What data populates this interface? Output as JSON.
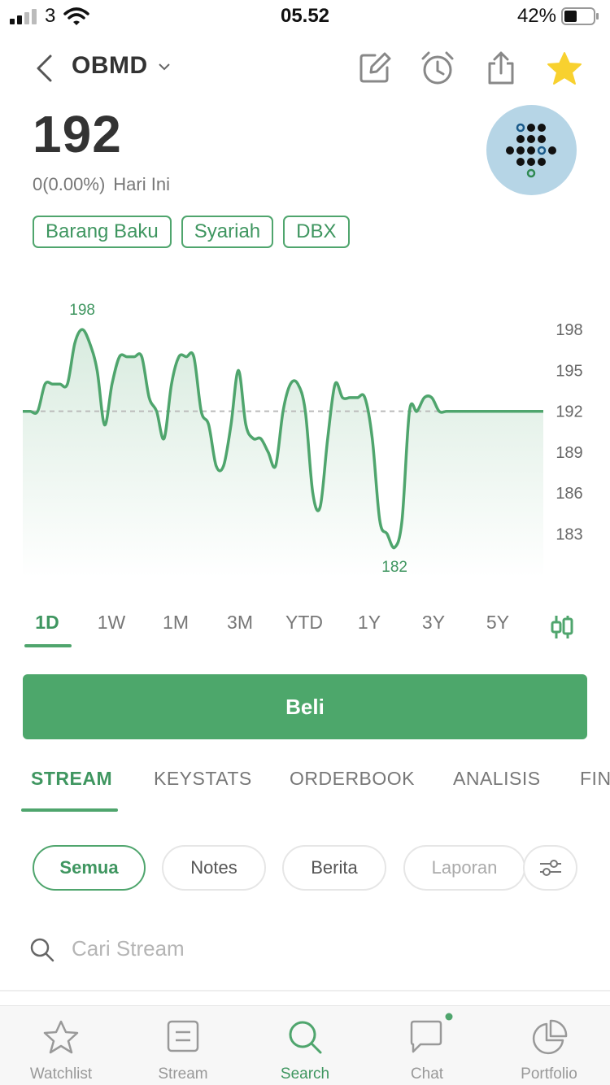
{
  "status_bar": {
    "carrier": "3",
    "time": "05.52",
    "battery": "42%"
  },
  "header": {
    "ticker": "OBMD"
  },
  "quote": {
    "price": "192",
    "change": "0(0.00%)",
    "period": "Hari Ini"
  },
  "tags": [
    "Barang Baku",
    "Syariah",
    "DBX"
  ],
  "chart_data": {
    "type": "line",
    "x": [
      0,
      1,
      2,
      3,
      4,
      5,
      6,
      7,
      8,
      9,
      10,
      11,
      12,
      13,
      14,
      15,
      16,
      17,
      18,
      19,
      20,
      21,
      22,
      23,
      24,
      25,
      26,
      27,
      28,
      29,
      30,
      31,
      32,
      33,
      34,
      35,
      36,
      37,
      38,
      39,
      40,
      41,
      42,
      43,
      44,
      45,
      46,
      47,
      48,
      49,
      50,
      51,
      52,
      53,
      54,
      55,
      56,
      57,
      58,
      59,
      60,
      61,
      62,
      63,
      64,
      65,
      66,
      67,
      68,
      69,
      70
    ],
    "values": [
      192,
      192,
      192,
      194,
      194,
      194,
      194,
      197,
      198,
      197,
      195,
      191,
      194,
      196,
      196,
      196,
      196,
      193,
      192,
      190,
      194,
      196,
      196,
      196,
      192,
      191,
      188,
      188,
      191,
      195,
      191,
      190,
      190,
      189,
      188,
      192,
      194,
      194,
      192,
      186,
      185,
      190,
      194,
      193,
      193,
      193,
      193,
      190,
      184,
      183,
      182,
      184,
      192,
      192,
      193,
      193,
      192,
      192,
      192,
      192,
      192,
      192,
      192,
      192,
      192,
      192,
      192,
      192,
      192,
      192,
      192
    ],
    "reference_line": 192,
    "high_label": "198",
    "low_label": "182",
    "y_ticks": [
      "198",
      "195",
      "192",
      "189",
      "186",
      "183"
    ],
    "ylim": [
      181,
      199.5
    ],
    "line_color": "#4fa56d"
  },
  "ranges": [
    "1D",
    "1W",
    "1M",
    "3M",
    "YTD",
    "1Y",
    "3Y",
    "5Y"
  ],
  "buy_button": "Beli",
  "tabs": [
    "STREAM",
    "KEYSTATS",
    "ORDERBOOK",
    "ANALISIS",
    "FIN"
  ],
  "filters": [
    "Semua",
    "Notes",
    "Berita",
    "Laporan"
  ],
  "search": {
    "placeholder": "Cari Stream"
  },
  "bottom_nav": [
    "Watchlist",
    "Stream",
    "Search",
    "Chat",
    "Portfolio"
  ],
  "colors": {
    "accent": "#4fa56d",
    "logo_bg": "#b6d5e6",
    "star": "#f8d12f"
  }
}
